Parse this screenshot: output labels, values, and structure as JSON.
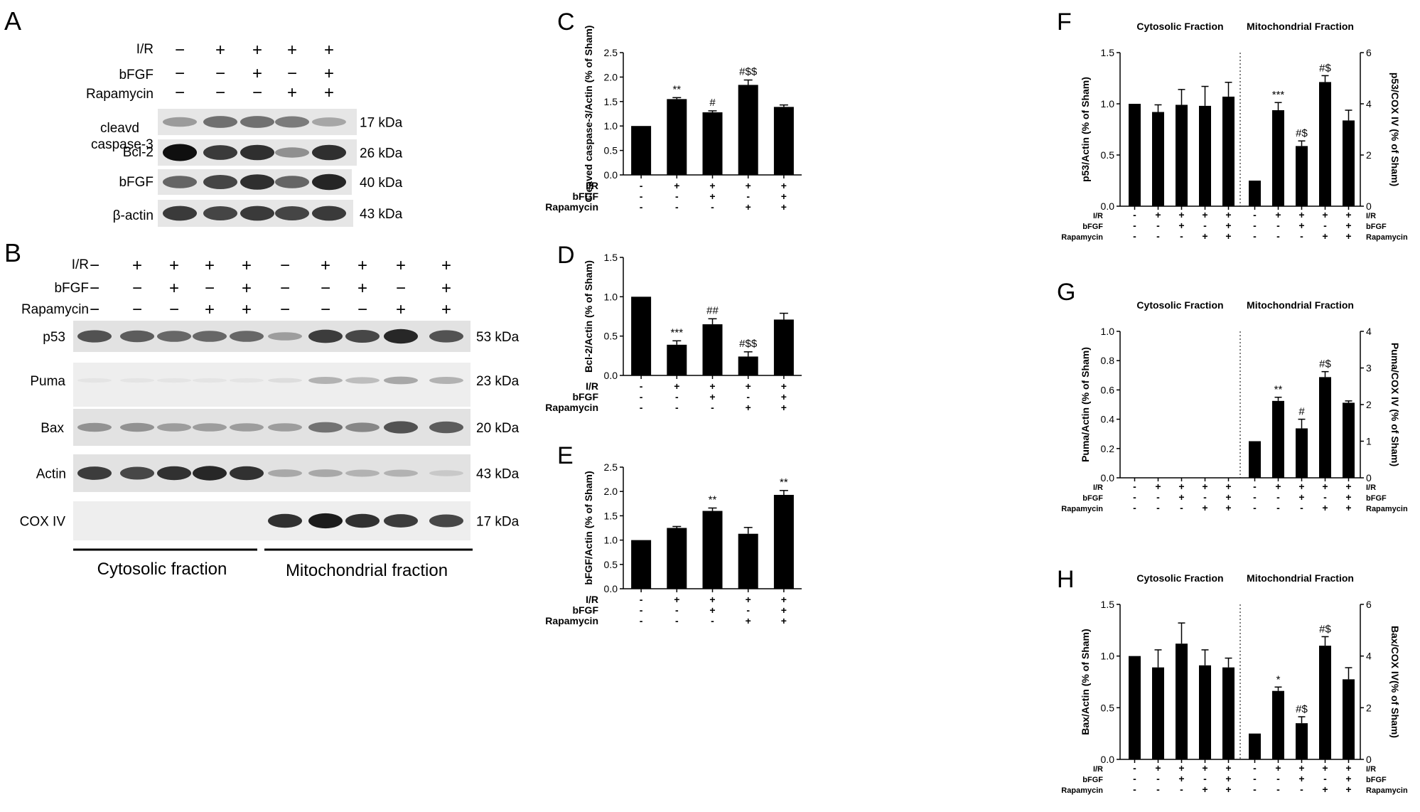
{
  "panels": {
    "A": {
      "letter": "A",
      "cond_labels": [
        "I/R",
        "bFGF",
        "Rapamycin"
      ],
      "cond_rows": [
        [
          "−",
          "+",
          "+",
          "+",
          "+"
        ],
        [
          "−",
          "−",
          "+",
          "−",
          "+"
        ],
        [
          "−",
          "−",
          "−",
          "+",
          "+"
        ]
      ],
      "bands": [
        {
          "label": "cleavd caspase-3",
          "kda": "17 kDa",
          "intensity": [
            0.35,
            0.55,
            0.55,
            0.5,
            0.3
          ]
        },
        {
          "label": "Bcl-2",
          "kda": "26 kDa",
          "intensity": [
            1.0,
            0.8,
            0.85,
            0.4,
            0.85
          ]
        },
        {
          "label": "bFGF",
          "kda": "40 kDa",
          "intensity": [
            0.6,
            0.75,
            0.85,
            0.6,
            0.9
          ]
        },
        {
          "label": "β-actin",
          "kda": "43 kDa",
          "intensity": [
            0.8,
            0.75,
            0.8,
            0.75,
            0.8
          ]
        }
      ]
    },
    "B": {
      "letter": "B",
      "cond_labels": [
        "I/R",
        "bFGF",
        "Rapamycin"
      ],
      "cond_rows": [
        [
          "−",
          "+",
          "+",
          "+",
          "+",
          "−",
          "+",
          "+",
          "+",
          "+"
        ],
        [
          "−",
          "−",
          "+",
          "−",
          "+",
          "−",
          "−",
          "+",
          "−",
          "+"
        ],
        [
          "−",
          "−",
          "−",
          "+",
          "+",
          "−",
          "−",
          "−",
          "+",
          "+"
        ]
      ],
      "bands": [
        {
          "label": "p53",
          "kda": "53 kDa",
          "intensity": [
            0.7,
            0.65,
            0.6,
            0.6,
            0.6,
            0.35,
            0.8,
            0.75,
            0.9,
            0.7
          ]
        },
        {
          "label": "Puma",
          "kda": "23 kDa",
          "intensity": [
            0.02,
            0.02,
            0.02,
            0.02,
            0.02,
            0.05,
            0.25,
            0.2,
            0.3,
            0.25
          ]
        },
        {
          "label": "Bax",
          "kda": "20 kDa",
          "intensity": [
            0.4,
            0.4,
            0.35,
            0.35,
            0.35,
            0.35,
            0.55,
            0.45,
            0.7,
            0.65
          ]
        },
        {
          "label": "Actin",
          "kda": "43 kDa",
          "intensity": [
            0.8,
            0.75,
            0.85,
            0.9,
            0.85,
            0.3,
            0.3,
            0.25,
            0.25,
            0.15
          ]
        },
        {
          "label": "COX IV",
          "kda": "17 kDa",
          "intensity": [
            0.0,
            0.0,
            0.0,
            0.0,
            0.0,
            0.85,
            0.95,
            0.85,
            0.8,
            0.75
          ]
        }
      ],
      "fractions": [
        "Cytosolic fraction",
        "Mitochondrial fraction"
      ]
    }
  },
  "chart_data": [
    {
      "panel": "C",
      "type": "bar",
      "ylabel": "Cleaved caspase-3/Actin (% of Sham)",
      "ylim": [
        0,
        2.5
      ],
      "yticks": [
        "0.0",
        "0.5",
        "1.0",
        "1.5",
        "2.0",
        "2.5"
      ],
      "values": [
        1.0,
        1.55,
        1.28,
        1.84,
        1.39
      ],
      "errors": [
        0,
        0.03,
        0.03,
        0.1,
        0.04
      ],
      "annotations": [
        "",
        "**",
        "#",
        "#$$",
        ""
      ],
      "conditions": {
        "labels": [
          "I/R",
          "bFGF",
          "Rapamycin"
        ],
        "rows": [
          [
            "-",
            "+",
            "+",
            "+",
            "+"
          ],
          [
            "-",
            "-",
            "+",
            "-",
            "+"
          ],
          [
            "-",
            "-",
            "-",
            "+",
            "+"
          ]
        ]
      }
    },
    {
      "panel": "D",
      "type": "bar",
      "ylabel": "Bcl-2/Actin (% of Sham)",
      "ylim": [
        0,
        1.5
      ],
      "yticks": [
        "0.0",
        "0.5",
        "1.0",
        "1.5"
      ],
      "values": [
        1.0,
        0.39,
        0.65,
        0.24,
        0.71
      ],
      "errors": [
        0,
        0.05,
        0.07,
        0.06,
        0.08
      ],
      "annotations": [
        "",
        "***",
        "##",
        "#$$",
        ""
      ],
      "conditions": {
        "labels": [
          "I/R",
          "bFGF",
          "Rapamycin"
        ],
        "rows": [
          [
            "-",
            "+",
            "+",
            "+",
            "+"
          ],
          [
            "-",
            "-",
            "+",
            "-",
            "+"
          ],
          [
            "-",
            "-",
            "-",
            "+",
            "+"
          ]
        ]
      }
    },
    {
      "panel": "E",
      "type": "bar",
      "ylabel": "bFGF/Actin (% of Sham)",
      "ylim": [
        0,
        2.5
      ],
      "yticks": [
        "0.0",
        "0.5",
        "1.0",
        "1.5",
        "2.0",
        "2.5"
      ],
      "values": [
        1.0,
        1.25,
        1.6,
        1.13,
        1.93
      ],
      "errors": [
        0,
        0.03,
        0.06,
        0.13,
        0.09
      ],
      "annotations": [
        "",
        "",
        "**",
        "",
        "**"
      ],
      "conditions": {
        "labels": [
          "I/R",
          "bFGF",
          "Rapamycin"
        ],
        "rows": [
          [
            "-",
            "+",
            "+",
            "+",
            "+"
          ],
          [
            "-",
            "-",
            "+",
            "-",
            "+"
          ],
          [
            "-",
            "-",
            "-",
            "+",
            "+"
          ]
        ]
      }
    },
    {
      "panel": "F",
      "type": "bar",
      "titles": [
        "Cytosolic Fraction",
        "Mitochondrial Fraction"
      ],
      "ylabel_left": "p53/Actin (% of Sham)",
      "ylabel_right": "p53/COX IV (% of Sham)",
      "ylim_left": [
        0,
        1.5
      ],
      "ylim_right": [
        0,
        6
      ],
      "yticks_left": [
        "0.0",
        "0.5",
        "1.0",
        "1.5"
      ],
      "yticks_right": [
        "0",
        "2",
        "4",
        "6"
      ],
      "left_values": [
        1.0,
        0.92,
        0.99,
        0.98,
        1.07
      ],
      "left_errors": [
        0,
        0.07,
        0.15,
        0.19,
        0.14
      ],
      "right_values": [
        1.0,
        3.75,
        2.35,
        4.85,
        3.35
      ],
      "right_errors": [
        0,
        0.3,
        0.2,
        0.25,
        0.4
      ],
      "right_annotations": [
        "",
        "***",
        "#$",
        "#$",
        ""
      ],
      "conditions": {
        "labels": [
          "I/R",
          "bFGF",
          "Rapamycin"
        ],
        "rows": [
          [
            "-",
            "+",
            "+",
            "+",
            "+"
          ],
          [
            "-",
            "-",
            "+",
            "-",
            "+"
          ],
          [
            "-",
            "-",
            "-",
            "+",
            "+"
          ]
        ]
      }
    },
    {
      "panel": "G",
      "type": "bar",
      "titles": [
        "Cytosolic Fraction",
        "Mitochondrial Fraction"
      ],
      "ylabel_left": "Puma/Actin (% of Sham)",
      "ylabel_right": "Puma/COX IV (% of Sham)",
      "ylim_left": [
        0,
        1.0
      ],
      "ylim_right": [
        0,
        4
      ],
      "yticks_left": [
        "0.0",
        "0.2",
        "0.4",
        "0.6",
        "0.8",
        "1.0"
      ],
      "yticks_right": [
        "0",
        "1",
        "2",
        "3",
        "4"
      ],
      "left_values": [
        0,
        0,
        0,
        0,
        0
      ],
      "left_errors": [
        0,
        0,
        0,
        0,
        0
      ],
      "right_values": [
        1.0,
        2.1,
        1.35,
        2.75,
        2.05
      ],
      "right_errors": [
        0,
        0.1,
        0.25,
        0.15,
        0.05
      ],
      "right_annotations": [
        "",
        "**",
        "#",
        "#$",
        ""
      ],
      "conditions": {
        "labels": [
          "I/R",
          "bFGF",
          "Rapamycin"
        ],
        "rows": [
          [
            "-",
            "+",
            "+",
            "+",
            "+"
          ],
          [
            "-",
            "-",
            "+",
            "-",
            "+"
          ],
          [
            "-",
            "-",
            "-",
            "+",
            "+"
          ]
        ]
      }
    },
    {
      "panel": "H",
      "type": "bar",
      "titles": [
        "Cytosolic Fraction",
        "Mitochondrial Fraction"
      ],
      "ylabel_left": "Bax/Actin (% of Sham)",
      "ylabel_right": "Bax/COX IV(% of Sham)",
      "ylim_left": [
        0,
        1.5
      ],
      "ylim_right": [
        0,
        6
      ],
      "yticks_left": [
        "0.0",
        "0.5",
        "1.0",
        "1.5"
      ],
      "yticks_right": [
        "0",
        "2",
        "4",
        "6"
      ],
      "left_values": [
        1.0,
        0.89,
        1.12,
        0.91,
        0.89
      ],
      "left_errors": [
        0,
        0.17,
        0.2,
        0.15,
        0.09
      ],
      "right_values": [
        1.0,
        2.65,
        1.4,
        4.4,
        3.1
      ],
      "right_errors": [
        0,
        0.15,
        0.25,
        0.35,
        0.45
      ],
      "right_annotations": [
        "",
        "*",
        "#$",
        "#$",
        ""
      ],
      "conditions": {
        "labels": [
          "I/R",
          "bFGF",
          "Rapamycin"
        ],
        "rows": [
          [
            "-",
            "+",
            "+",
            "+",
            "+"
          ],
          [
            "-",
            "-",
            "+",
            "-",
            "+"
          ],
          [
            "-",
            "-",
            "-",
            "+",
            "+"
          ]
        ]
      }
    }
  ]
}
